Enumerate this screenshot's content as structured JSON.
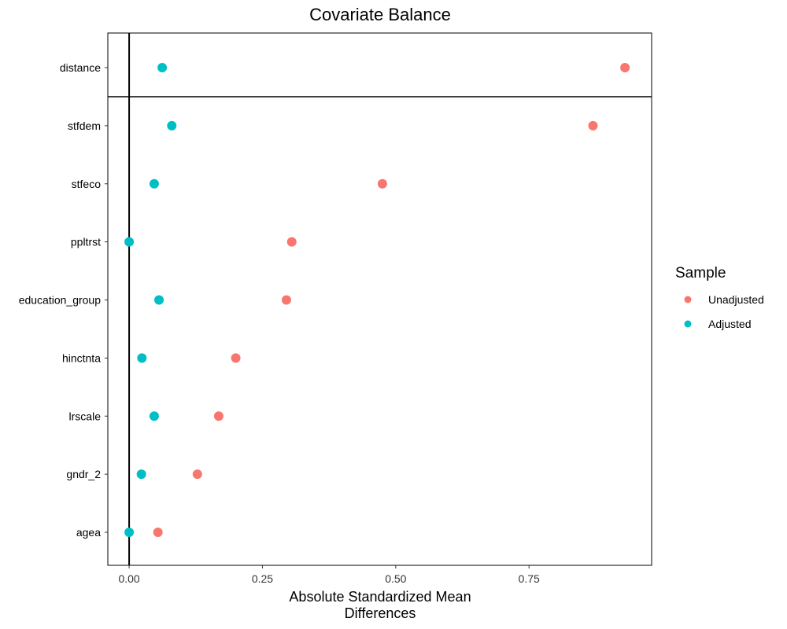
{
  "chart_data": {
    "type": "scatter",
    "title": "Covariate Balance",
    "xlabel_lines": [
      "Absolute Standardized Mean",
      "Differences"
    ],
    "ylabel": "",
    "xlim": [
      -0.04,
      0.98
    ],
    "xticks": [
      0.0,
      0.25,
      0.5,
      0.75
    ],
    "xtick_labels": [
      "0.00",
      "0.25",
      "0.50",
      "0.75"
    ],
    "reference_line_x": 0,
    "categories": [
      "distance",
      "stfdem",
      "stfeco",
      "ppltrst",
      "education_group",
      "hinctnta",
      "lrscale",
      "gndr_2",
      "agea"
    ],
    "series": [
      {
        "name": "Unadjusted",
        "color": "#F8766D",
        "values": [
          0.93,
          0.87,
          0.475,
          0.305,
          0.295,
          0.2,
          0.168,
          0.128,
          0.054
        ]
      },
      {
        "name": "Adjusted",
        "color": "#00BFC4",
        "values": [
          0.062,
          0.08,
          0.047,
          0.0,
          0.056,
          0.024,
          0.047,
          0.023,
          0.0
        ]
      }
    ],
    "legend": {
      "title": "Sample",
      "position": "right"
    },
    "grid": false
  }
}
